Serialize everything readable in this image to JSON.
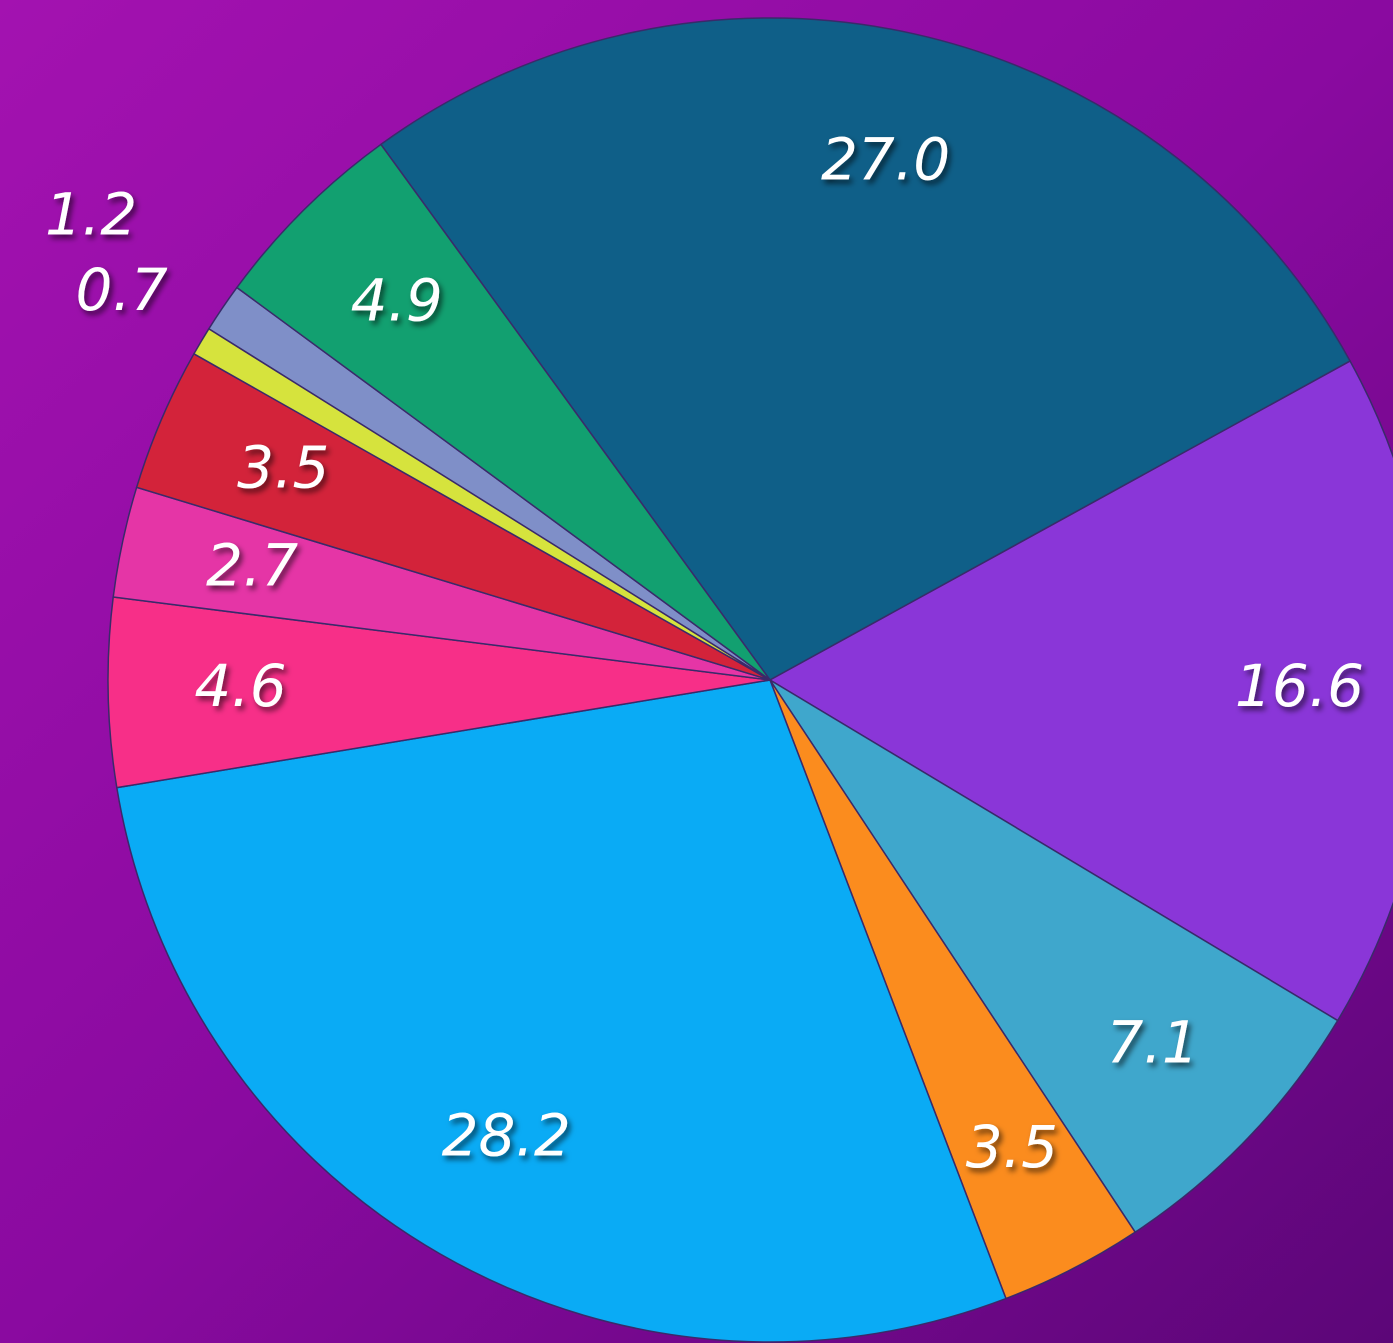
{
  "chart_data": {
    "type": "pie",
    "values": [
      27.0,
      16.6,
      7.1,
      3.5,
      28.2,
      4.6,
      2.7,
      3.5,
      0.7,
      1.2,
      4.9
    ],
    "value_labels": [
      "27.0",
      "16.6",
      "7.1",
      "3.5",
      "28.2",
      "4.6",
      "2.7",
      "3.5",
      "0.7",
      "1.2",
      "4.9"
    ],
    "colors": [
      "#0f5f88",
      "#8a36d8",
      "#3fa7cc",
      "#fb8c1e",
      "#0aabf5",
      "#f72f88",
      "#e535a6",
      "#d3233a",
      "#d6e33d",
      "#7f8fc8",
      "#12a070"
    ]
  }
}
